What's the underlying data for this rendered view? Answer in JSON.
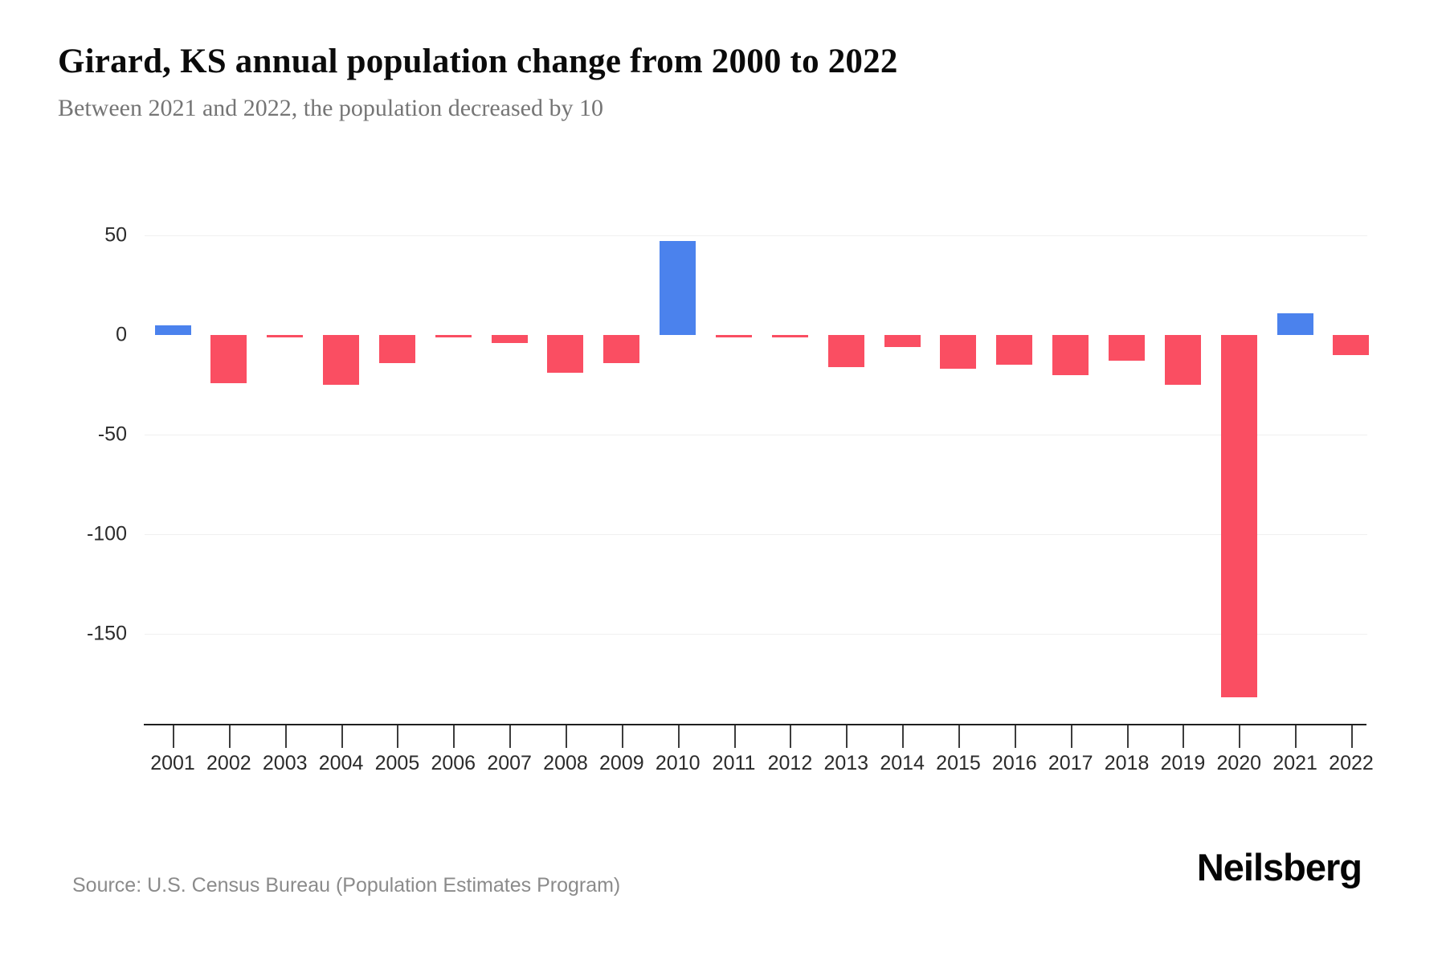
{
  "header": {
    "title": "Girard, KS annual population change from 2000 to 2022",
    "subtitle": "Between 2021 and 2022, the population decreased by 10"
  },
  "chart_data": {
    "type": "bar",
    "title": "Girard, KS annual population change from 2000 to 2022",
    "subtitle": "Between 2021 and 2022, the population decreased by 10",
    "categories": [
      "2001",
      "2002",
      "2003",
      "2004",
      "2005",
      "2006",
      "2007",
      "2008",
      "2009",
      "2010",
      "2011",
      "2012",
      "2013",
      "2014",
      "2015",
      "2016",
      "2017",
      "2018",
      "2019",
      "2020",
      "2021",
      "2022"
    ],
    "values": [
      5,
      -24,
      -1,
      -25,
      -14,
      -1,
      -4,
      -19,
      -14,
      47,
      -1,
      -1,
      -16,
      -6,
      -17,
      -15,
      -20,
      -13,
      -25,
      -182,
      11,
      -10
    ],
    "yticks": [
      {
        "value": 50,
        "label": "50"
      },
      {
        "value": 0,
        "label": "0"
      },
      {
        "value": -50,
        "label": "-50"
      },
      {
        "value": -100,
        "label": "-100"
      },
      {
        "value": -150,
        "label": "-150"
      }
    ],
    "ylim": [
      -195,
      60
    ],
    "xlabel": "",
    "ylabel": "",
    "grid": true,
    "legend_position": "none",
    "positive_color": "#4b82ed",
    "negative_color": "#fa4e62"
  },
  "footer": {
    "source": "Source: U.S. Census Bureau (Population Estimates Program)",
    "brand": "Neilsberg"
  }
}
